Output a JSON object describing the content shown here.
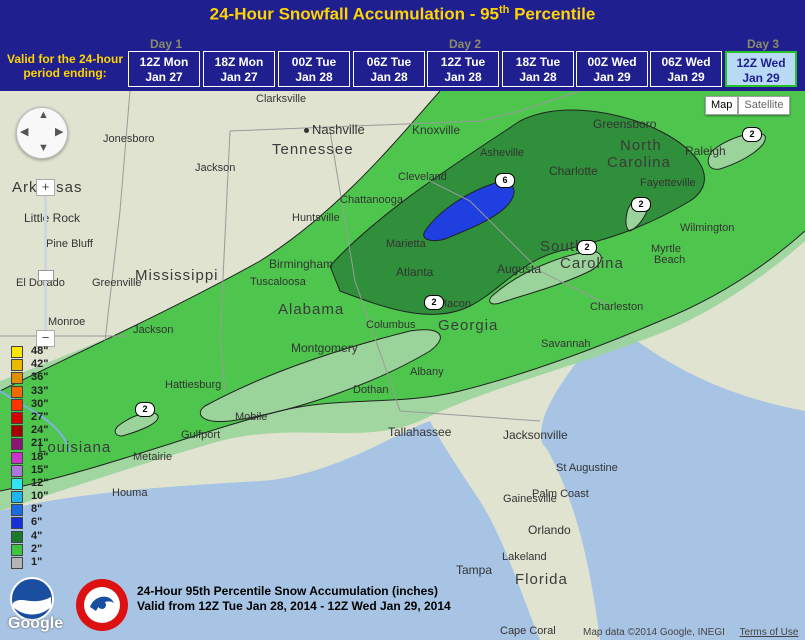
{
  "header": {
    "title_main": "24-Hour Snowfall Accumulation - 95",
    "title_sup": "th",
    "title_end": " Percentile",
    "valid_label_line1": "Valid for the 24-hour",
    "valid_label_line2": "period ending:",
    "days": [
      "Day 1",
      "Day 2",
      "Day 3"
    ],
    "periods": [
      {
        "line1": "12Z Mon",
        "line2": "Jan 27"
      },
      {
        "line1": "18Z Mon",
        "line2": "Jan 27"
      },
      {
        "line1": "00Z Tue",
        "line2": "Jan 28"
      },
      {
        "line1": "06Z Tue",
        "line2": "Jan 28"
      },
      {
        "line1": "12Z Tue",
        "line2": "Jan 28"
      },
      {
        "line1": "18Z Tue",
        "line2": "Jan 28"
      },
      {
        "line1": "00Z Wed",
        "line2": "Jan 29"
      },
      {
        "line1": "06Z Wed",
        "line2": "Jan 29"
      },
      {
        "line1": "12Z Wed",
        "line2": "Jan 29"
      }
    ],
    "selected_period": "12Z Wed Jan 29"
  },
  "map_controls": {
    "map_label": "Map",
    "satellite_label": "Satellite",
    "zoom_in": "+",
    "zoom_out": "−"
  },
  "states": [
    "Arkansas",
    "Tennessee",
    "Mississippi",
    "Alabama",
    "Georgia",
    "Louisiana",
    "Florida",
    "North",
    "Carolina",
    "South",
    "Carolina"
  ],
  "cities": [
    "Clarksville",
    "Nashville",
    "Knoxville",
    "Greensboro",
    "Jonesboro",
    "Jackson",
    "Asheville",
    "Raleigh",
    "Cleveland",
    "Charlotte",
    "Little Rock",
    "Chattanooga",
    "Fayetteville",
    "Huntsville",
    "Pine Bluff",
    "Marietta",
    "Wilmington",
    "Atlanta",
    "Augusta",
    "Myrtle",
    "Beach",
    "Birmingham",
    "El Dorado",
    "Greenville",
    "Tuscaloosa",
    "Macon",
    "Charleston",
    "Monroe",
    "Jackson",
    "Columbus",
    "Montgomery",
    "Savannah",
    "Hattiesburg",
    "Dothan",
    "Albany",
    "Mobile",
    "Gulfport",
    "Tallahassee",
    "Jacksonville",
    "Metairie",
    "Houma",
    "St Augustine",
    "Gainesville",
    "Palm Coast",
    "Orlando",
    "Lakeland",
    "Tampa",
    "Cape Coral"
  ],
  "contour_labels": [
    "2",
    "2",
    "2",
    "2",
    "2",
    "6"
  ],
  "legend": {
    "items": [
      {
        "label": "48\"",
        "color": "#ffe600"
      },
      {
        "label": "42\"",
        "color": "#e8bb00"
      },
      {
        "label": "36\"",
        "color": "#e38d00"
      },
      {
        "label": "33\"",
        "color": "#f06a00"
      },
      {
        "label": "30\"",
        "color": "#ff3300"
      },
      {
        "label": "27\"",
        "color": "#d40000"
      },
      {
        "label": "24\"",
        "color": "#a40000"
      },
      {
        "label": "21\"",
        "color": "#8a1575"
      },
      {
        "label": "18\"",
        "color": "#cc33cc"
      },
      {
        "label": "15\"",
        "color": "#aa77dd"
      },
      {
        "label": "12\"",
        "color": "#33e5f0"
      },
      {
        "label": "10\"",
        "color": "#1fb6f0"
      },
      {
        "label": "8\"",
        "color": "#1a6be0"
      },
      {
        "label": "6\"",
        "color": "#1530d8"
      },
      {
        "label": "4\"",
        "color": "#1a7a2a"
      },
      {
        "label": "2\"",
        "color": "#3ec43e"
      },
      {
        "label": "1\"",
        "color": "#b4b4b4"
      }
    ]
  },
  "footnote": {
    "line1": "24-Hour 95th Percentile Snow Accumulation (inches)",
    "line2": "Valid from 12Z Tue Jan 28, 2014 - 12Z Wed Jan 29, 2014"
  },
  "attribution": {
    "data": "Map data ©2014 Google, INEGI",
    "terms": "Terms of Use",
    "google": "Google",
    "noaa": "NOAA",
    "nws": "NATIONAL WEATHER SERVICE"
  },
  "colors": {
    "header_bg": "#1f1f8f",
    "title": "#ffd400",
    "selected_bg": "#b9d9f5",
    "selected_border": "#27c227"
  }
}
